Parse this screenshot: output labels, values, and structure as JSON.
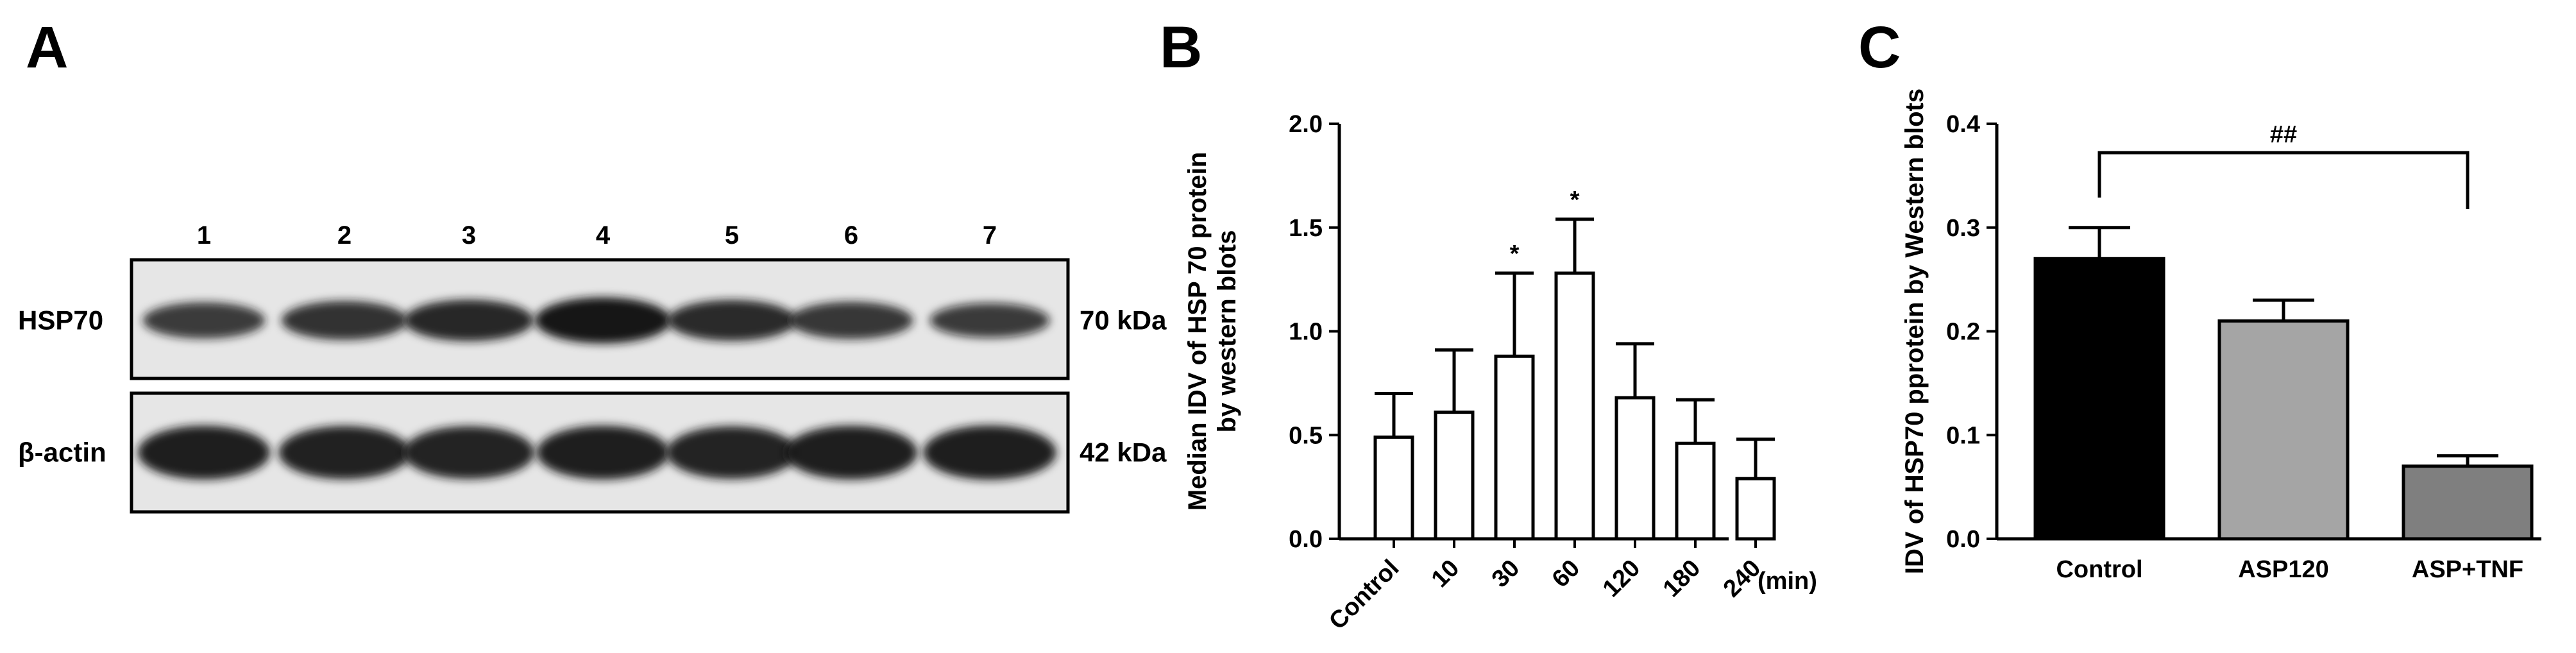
{
  "panels": {
    "a": "A",
    "b": "B",
    "c": "C"
  },
  "blot": {
    "lanes": [
      "1",
      "2",
      "3",
      "4",
      "5",
      "6",
      "7"
    ],
    "rows": [
      {
        "protein": "HSP70",
        "size": "70 kDa",
        "intensity": [
          0.62,
          0.72,
          0.82,
          1.0,
          0.8,
          0.66,
          0.55
        ]
      },
      {
        "protein": "β-actin",
        "size": "42 kDa",
        "intensity": [
          0.9,
          0.88,
          0.86,
          0.9,
          0.86,
          0.9,
          0.92
        ]
      }
    ],
    "colors": {
      "band": "#141414",
      "background": "#e6e6e6",
      "frame": "#000000"
    }
  },
  "chart_data": [
    {
      "type": "bar",
      "title": "",
      "xlabel": "",
      "x_unit": "(min)",
      "ylabel": "Median IDV of HSP 70 protein by western blots",
      "ylim": [
        0,
        2.0
      ],
      "yticks": [
        "0.0",
        "0.5",
        "1.0",
        "1.5",
        "2.0"
      ],
      "categories": [
        "Control",
        "10",
        "30",
        "60",
        "120",
        "180",
        "240"
      ],
      "values": [
        0.49,
        0.61,
        0.88,
        1.28,
        0.68,
        0.46,
        0.29
      ],
      "errors": [
        0.21,
        0.3,
        0.4,
        0.26,
        0.26,
        0.21,
        0.19
      ],
      "significance": [
        "",
        "",
        "*",
        "*",
        "",
        "",
        ""
      ],
      "bar_fill": "#ffffff",
      "bar_stroke": "#000000",
      "grid": false
    },
    {
      "type": "bar",
      "title": "",
      "xlabel": "",
      "ylabel": "IDV of HSP70 pprotein by Western blots",
      "ylim": [
        0,
        0.4
      ],
      "yticks": [
        "0.0",
        "0.1",
        "0.2",
        "0.3",
        "0.4"
      ],
      "categories": [
        "Control",
        "ASP120",
        "ASP+TNF"
      ],
      "values": [
        0.27,
        0.21,
        0.07
      ],
      "errors": [
        0.03,
        0.02,
        0.01
      ],
      "bar_colors": [
        "#000000",
        "#a5a5a5",
        "#7f7f7f"
      ],
      "comparison": {
        "from": "Control",
        "to": "ASP+TNF",
        "label": "##"
      },
      "grid": false
    }
  ]
}
